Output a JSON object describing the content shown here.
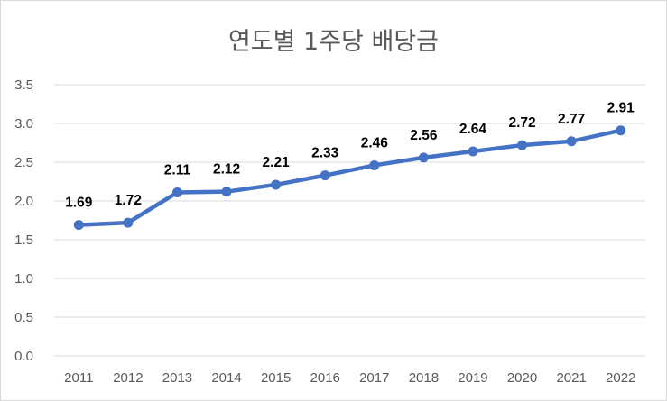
{
  "chart_data": {
    "type": "line",
    "title": "연도별 1주당 배당금",
    "xlabel": "",
    "ylabel": "",
    "categories": [
      "2011",
      "2012",
      "2013",
      "2014",
      "2015",
      "2016",
      "2017",
      "2018",
      "2019",
      "2020",
      "2021",
      "2022"
    ],
    "series": [
      {
        "values": [
          1.69,
          1.72,
          2.11,
          2.12,
          2.21,
          2.33,
          2.46,
          2.56,
          2.64,
          2.72,
          2.77,
          2.91
        ],
        "labels": [
          "1.69",
          "1.72",
          "2.11",
          "2.12",
          "2.21",
          "2.33",
          "2.46",
          "2.56",
          "2.64",
          "2.72",
          "2.77",
          "2.91"
        ]
      }
    ],
    "ylim": [
      0,
      3.5
    ],
    "yticks": [
      0,
      0.5,
      1,
      1.5,
      2,
      2.5,
      3,
      3.5
    ],
    "ytick_labels": [
      "0.0",
      "0.5",
      "1.0",
      "1.5",
      "2.0",
      "2.5",
      "3.0",
      "3.5"
    ],
    "grid": true,
    "legend": "none",
    "colors": {
      "line": "#4472c4",
      "grid": "#d9d9d9",
      "text": "#595959"
    }
  }
}
